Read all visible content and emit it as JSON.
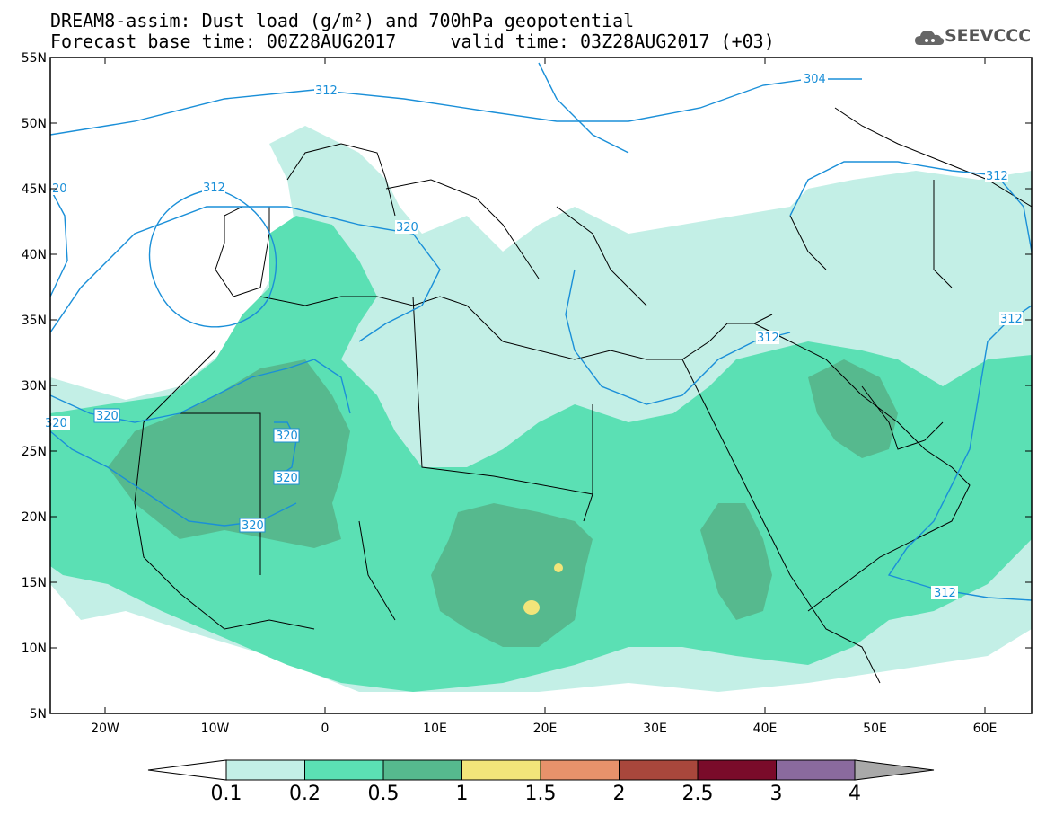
{
  "header": {
    "line1": "DREAM8-assim: Dust load (g/m²) and 700hPa geopotential",
    "line2": "Forecast base time: 00Z28AUG2017     valid time: 03Z28AUG2017 (+03)"
  },
  "logo": {
    "text": "SEEVCCC",
    "icon": "cloud-icon"
  },
  "map": {
    "lon_range": [
      -25,
      65
    ],
    "lat_range": [
      5,
      55
    ],
    "lat_ticks": [
      "55N",
      "50N",
      "45N",
      "40N",
      "35N",
      "30N",
      "25N",
      "20N",
      "15N",
      "10N",
      "5N"
    ],
    "lon_ticks": [
      "20W",
      "10W",
      "0",
      "10E",
      "20E",
      "30E",
      "40E",
      "50E",
      "60E"
    ],
    "contour_labels": [
      "312",
      "304",
      "312",
      "312",
      "320",
      "312",
      "312",
      "320",
      "320",
      "320",
      "320",
      "312",
      "20",
      "320"
    ],
    "colors": {
      "level_0_1": "#c3efe6",
      "level_0_2": "#5be0b4",
      "level_0_5": "#56b98e",
      "level_1": "#f2e57a",
      "contour": "#1a8fd8",
      "border": "#000000"
    }
  },
  "colorbar": {
    "labels": [
      "0.1",
      "0.2",
      "0.5",
      "1",
      "1.5",
      "2",
      "2.5",
      "3",
      "4"
    ],
    "colors": [
      "#c3efe6",
      "#5be0b4",
      "#56b98e",
      "#f2e57a",
      "#e8926b",
      "#a8473c",
      "#7a0b2a",
      "#8a6a9e"
    ]
  }
}
